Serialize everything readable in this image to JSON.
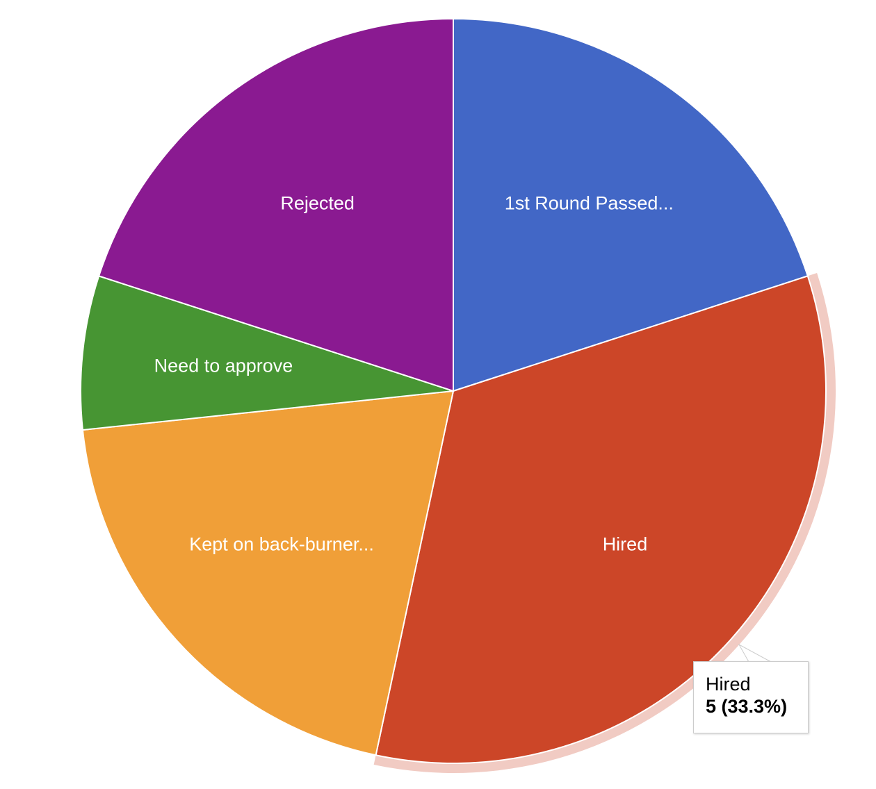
{
  "chart_data": {
    "type": "pie",
    "slices": [
      {
        "label": "1st Round Passed...",
        "value": 3,
        "color": "#4267c6"
      },
      {
        "label": "Hired",
        "value": 5,
        "color": "#cc4628"
      },
      {
        "label": "Kept on back-burner...",
        "value": 3,
        "color": "#f09f38"
      },
      {
        "label": "Need to approve",
        "value": 1,
        "color": "#479533"
      },
      {
        "label": "Rejected",
        "value": 3,
        "color": "#8a1a91"
      }
    ],
    "start_angle_deg": 0,
    "direction": "clockwise",
    "highlighted_slice": "Hired",
    "highlight_color": "#f1cbc3",
    "tooltip": {
      "label": "Hired",
      "value_text": "5 (33.3%)"
    }
  }
}
